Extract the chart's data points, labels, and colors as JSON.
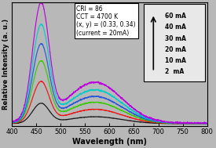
{
  "xlabel": "Wavelength (nm)",
  "ylabel": "Relative Intensity (a. u.)",
  "xlim": [
    400,
    800
  ],
  "ylim": [
    -0.02,
    1.08
  ],
  "annotation": "CRI = 86\nCCT = 4700 K\n(x, y) = (0.33, 0.34)\n(current = 20mA)",
  "legend_labels": [
    "60 mA",
    "40 mA",
    "30 mA",
    "20 mA",
    "10 mA",
    "2  mA"
  ],
  "colors": [
    "#BB00DD",
    "#00CCCC",
    "#2255DD",
    "#33CC00",
    "#EE1111",
    "#111111"
  ],
  "bg_color": "#b8b8b8",
  "peak1_nm": 460,
  "peak2_nm": 570,
  "peak1_sigma": 16,
  "peak2_sigma": 55,
  "peak2_ratio": 0.36,
  "scales": [
    1.0,
    0.82,
    0.66,
    0.52,
    0.35,
    0.17
  ],
  "xticks": [
    400,
    450,
    500,
    550,
    600,
    650,
    700,
    750,
    800
  ],
  "xlabel_fontsize": 7,
  "ylabel_fontsize": 6,
  "tick_fontsize": 6
}
